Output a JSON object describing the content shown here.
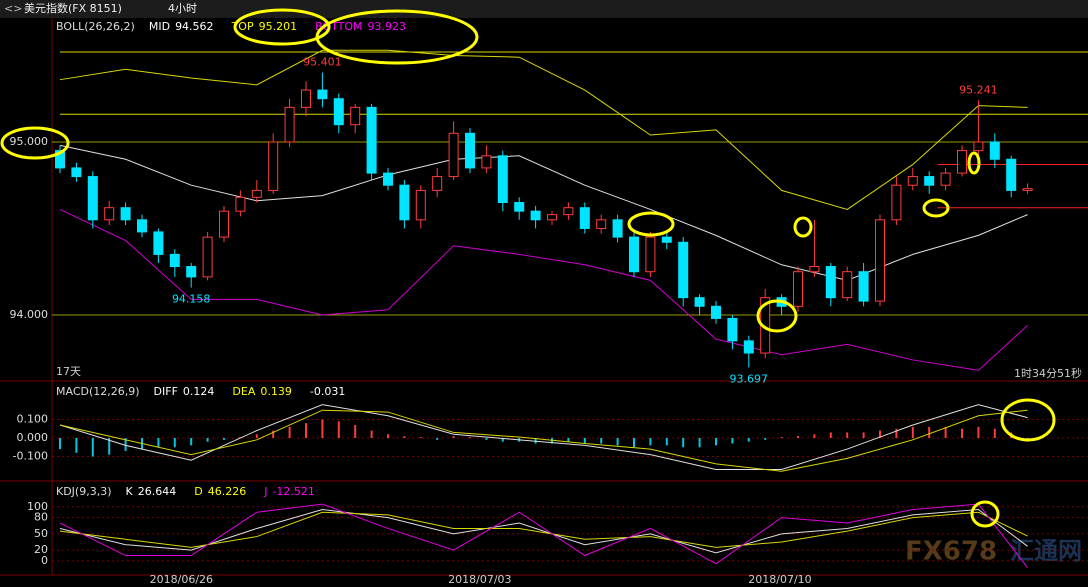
{
  "chart_data": [
    {
      "type": "candlestick",
      "title": "美元指数(FX 8151)",
      "period": "4小时",
      "indicator": "BOLL(26,26,2)",
      "stats": [
        {
          "name": "MID",
          "value": 94.562,
          "color": "#ffffff"
        },
        {
          "name": "TOP",
          "value": 95.201,
          "color": "#ffff00"
        },
        {
          "name": "BOTTOM",
          "value": 93.923,
          "color": "#ff00ff"
        }
      ],
      "open": [
        94.95,
        94.85,
        94.8,
        94.55,
        94.62,
        94.55,
        94.48,
        94.35,
        94.28,
        94.22,
        94.45,
        94.6,
        94.68,
        94.72,
        95.0,
        95.2,
        95.3,
        95.25,
        95.1,
        95.2,
        94.82,
        94.75,
        94.55,
        94.72,
        94.8,
        95.05,
        94.85,
        94.92,
        94.65,
        94.6,
        94.55,
        94.58,
        94.62,
        94.5,
        94.55,
        94.45,
        94.25,
        94.45,
        94.42,
        94.1,
        94.05,
        93.98,
        93.85,
        93.78,
        94.1,
        94.05,
        94.25,
        94.28,
        94.1,
        94.25,
        94.08,
        94.55,
        94.75,
        94.8,
        94.75,
        94.82,
        94.95,
        95.0,
        94.9,
        94.72
      ],
      "high": [
        94.98,
        94.88,
        94.83,
        94.66,
        94.65,
        94.58,
        94.5,
        94.38,
        94.3,
        94.48,
        94.63,
        94.72,
        94.78,
        95.05,
        95.25,
        95.35,
        95.401,
        95.28,
        95.22,
        95.22,
        94.85,
        94.78,
        94.75,
        94.85,
        95.12,
        95.08,
        94.98,
        94.95,
        94.68,
        94.63,
        94.6,
        94.65,
        94.65,
        94.58,
        94.58,
        94.48,
        94.48,
        94.48,
        94.45,
        94.12,
        94.08,
        94.0,
        93.88,
        94.15,
        94.12,
        94.28,
        94.55,
        94.3,
        94.28,
        94.3,
        94.58,
        94.8,
        94.85,
        94.83,
        94.85,
        94.98,
        95.241,
        95.05,
        94.92,
        94.76
      ],
      "low": [
        94.82,
        94.77,
        94.5,
        94.52,
        94.52,
        94.45,
        94.3,
        94.22,
        94.158,
        94.2,
        94.42,
        94.57,
        94.65,
        94.7,
        94.97,
        95.15,
        95.2,
        95.05,
        95.05,
        94.78,
        94.72,
        94.5,
        94.5,
        94.68,
        94.78,
        94.82,
        94.82,
        94.6,
        94.55,
        94.5,
        94.52,
        94.55,
        94.47,
        94.47,
        94.42,
        94.22,
        94.22,
        94.38,
        94.05,
        94.0,
        93.95,
        93.8,
        93.697,
        93.75,
        94.0,
        94.02,
        94.22,
        94.05,
        94.08,
        94.05,
        94.05,
        94.52,
        94.72,
        94.7,
        94.72,
        94.8,
        94.92,
        94.85,
        94.68,
        94.7
      ],
      "close": [
        94.85,
        94.8,
        94.55,
        94.62,
        94.55,
        94.48,
        94.35,
        94.28,
        94.22,
        94.45,
        94.6,
        94.68,
        94.72,
        95.0,
        95.2,
        95.3,
        95.25,
        95.1,
        95.2,
        94.82,
        94.75,
        94.55,
        94.72,
        94.8,
        95.05,
        94.85,
        94.92,
        94.65,
        94.6,
        94.55,
        94.58,
        94.62,
        94.5,
        94.55,
        94.45,
        94.25,
        94.45,
        94.42,
        94.1,
        94.05,
        93.98,
        93.85,
        93.78,
        94.1,
        94.05,
        94.25,
        94.28,
        94.1,
        94.25,
        94.08,
        94.55,
        94.75,
        94.8,
        94.75,
        94.82,
        94.95,
        95.0,
        94.9,
        94.72,
        94.73
      ],
      "up_color": "#ff3c3c",
      "down_color": "#00e4ff",
      "band_index": [
        0,
        4,
        8,
        12,
        16,
        20,
        24,
        28,
        32,
        36,
        40,
        44,
        48,
        52,
        56,
        59
      ],
      "band_series": [
        {
          "color": "#d8d800",
          "values": [
            95.36,
            95.42,
            95.37,
            95.33,
            95.53,
            95.53,
            95.5,
            95.49,
            95.3,
            95.04,
            95.07,
            94.72,
            94.61,
            94.87,
            95.21,
            95.2
          ]
        },
        {
          "color": "#e0e0e0",
          "values": [
            94.98,
            94.9,
            94.75,
            94.66,
            94.69,
            94.81,
            94.9,
            94.92,
            94.75,
            94.61,
            94.46,
            94.29,
            94.2,
            94.35,
            94.46,
            94.58
          ]
        },
        {
          "color": "#d000d0",
          "values": [
            94.61,
            94.43,
            94.09,
            94.09,
            94.0,
            94.03,
            94.4,
            94.35,
            94.29,
            94.2,
            93.86,
            93.77,
            93.83,
            93.74,
            93.68,
            93.94
          ]
        }
      ],
      "hlines": [
        {
          "value": 95.52,
          "color": "#d8d800",
          "from_index": 0
        },
        {
          "value": 95.16,
          "color": "#d8d800",
          "from_index": 0
        },
        {
          "value": 94.87,
          "color": "#ff2020",
          "from_index": 53.5
        },
        {
          "value": 94.62,
          "color": "#ff2020",
          "from_index": 53.5
        }
      ],
      "ylim": [
        93.624,
        95.705
      ],
      "yticks": [
        {
          "value": 95,
          "label": "95.000"
        },
        {
          "value": 94,
          "label": "94.000"
        }
      ],
      "xticks": [
        {
          "value": 7.4,
          "label": "2018/06/26"
        },
        {
          "value": 25.6,
          "label": "2018/07/03"
        },
        {
          "value": 43.9,
          "label": "2018/07/10"
        }
      ],
      "days": "17天",
      "countdown": "1时34分51秒"
    },
    {
      "type": "macd",
      "indicator": "MACD(12,26,9)",
      "stats": [
        {
          "name": "DIFF",
          "value": 0.124,
          "color": "#ffffff"
        },
        {
          "name": "DEA",
          "value": 0.139,
          "color": "#ffff00"
        },
        {
          "value": -0.031,
          "color": "#ffffff"
        }
      ],
      "histogram": [
        -0.06,
        -0.08,
        -0.1,
        -0.09,
        -0.07,
        -0.06,
        -0.05,
        -0.05,
        -0.04,
        -0.02,
        -0.01,
        0.005,
        0.02,
        0.04,
        0.06,
        0.08,
        0.1,
        0.09,
        0.07,
        0.04,
        0.02,
        0.01,
        0.005,
        -0.01,
        0.01,
        0.005,
        -0.01,
        -0.02,
        -0.02,
        -0.03,
        -0.03,
        -0.02,
        -0.03,
        -0.03,
        -0.04,
        -0.05,
        -0.04,
        -0.04,
        -0.05,
        -0.05,
        -0.04,
        -0.03,
        -0.02,
        -0.01,
        0.005,
        0.01,
        0.02,
        0.03,
        0.03,
        0.03,
        0.04,
        0.05,
        0.06,
        0.06,
        0.06,
        0.05,
        0.06,
        0.05,
        0.03,
        -0.02
      ],
      "line_index": [
        0,
        4,
        8,
        12,
        16,
        20,
        24,
        28,
        32,
        36,
        40,
        44,
        48,
        52,
        56,
        59
      ],
      "series": [
        {
          "color": "#e0e0e0",
          "values": [
            0.07,
            -0.04,
            -0.12,
            0.04,
            0.18,
            0.12,
            0.02,
            -0.01,
            -0.04,
            -0.09,
            -0.17,
            -0.17,
            -0.06,
            0.07,
            0.18,
            0.11
          ]
        },
        {
          "color": "#d8d800",
          "values": [
            0.07,
            -0.01,
            -0.09,
            -0.01,
            0.15,
            0.14,
            0.03,
            0.005,
            -0.03,
            -0.06,
            -0.14,
            -0.18,
            -0.11,
            -0.01,
            0.12,
            0.15
          ]
        }
      ],
      "ylim": [
        -0.227,
        0.297
      ],
      "yticks": [
        {
          "value": 0.1,
          "label": "0.100"
        },
        {
          "value": 0,
          "label": "0.000"
        },
        {
          "value": -0.1,
          "label": "-0.100"
        }
      ]
    },
    {
      "type": "line",
      "indicator": "KDJ(9,3,3)",
      "stats": [
        {
          "name": "K",
          "value": 26.644,
          "color": "#ffffff"
        },
        {
          "name": "D",
          "value": 46.226,
          "color": "#ffff00"
        },
        {
          "name": "J",
          "value": -12.521,
          "color": "#ff00ff"
        }
      ],
      "line_index": [
        0,
        4,
        8,
        12,
        16,
        20,
        24,
        28,
        32,
        36,
        40,
        44,
        48,
        52,
        56,
        59
      ],
      "series": [
        {
          "color": "#e0e0e0",
          "values": [
            60,
            30,
            20,
            60,
            95,
            80,
            50,
            70,
            30,
            50,
            15,
            50,
            60,
            85,
            95,
            27
          ]
        },
        {
          "color": "#d8d800",
          "values": [
            55,
            40,
            25,
            45,
            90,
            85,
            60,
            60,
            40,
            45,
            25,
            35,
            55,
            80,
            90,
            46
          ]
        },
        {
          "color": "#e000e0",
          "values": [
            70,
            10,
            10,
            90,
            105,
            60,
            20,
            90,
            10,
            60,
            -5,
            80,
            70,
            95,
            105,
            -12.5
          ]
        }
      ],
      "ylim": [
        -26,
        144
      ],
      "yticks": [
        100,
        80,
        50,
        20,
        0
      ]
    }
  ],
  "watermark": [
    "FX678",
    "汇通网"
  ]
}
